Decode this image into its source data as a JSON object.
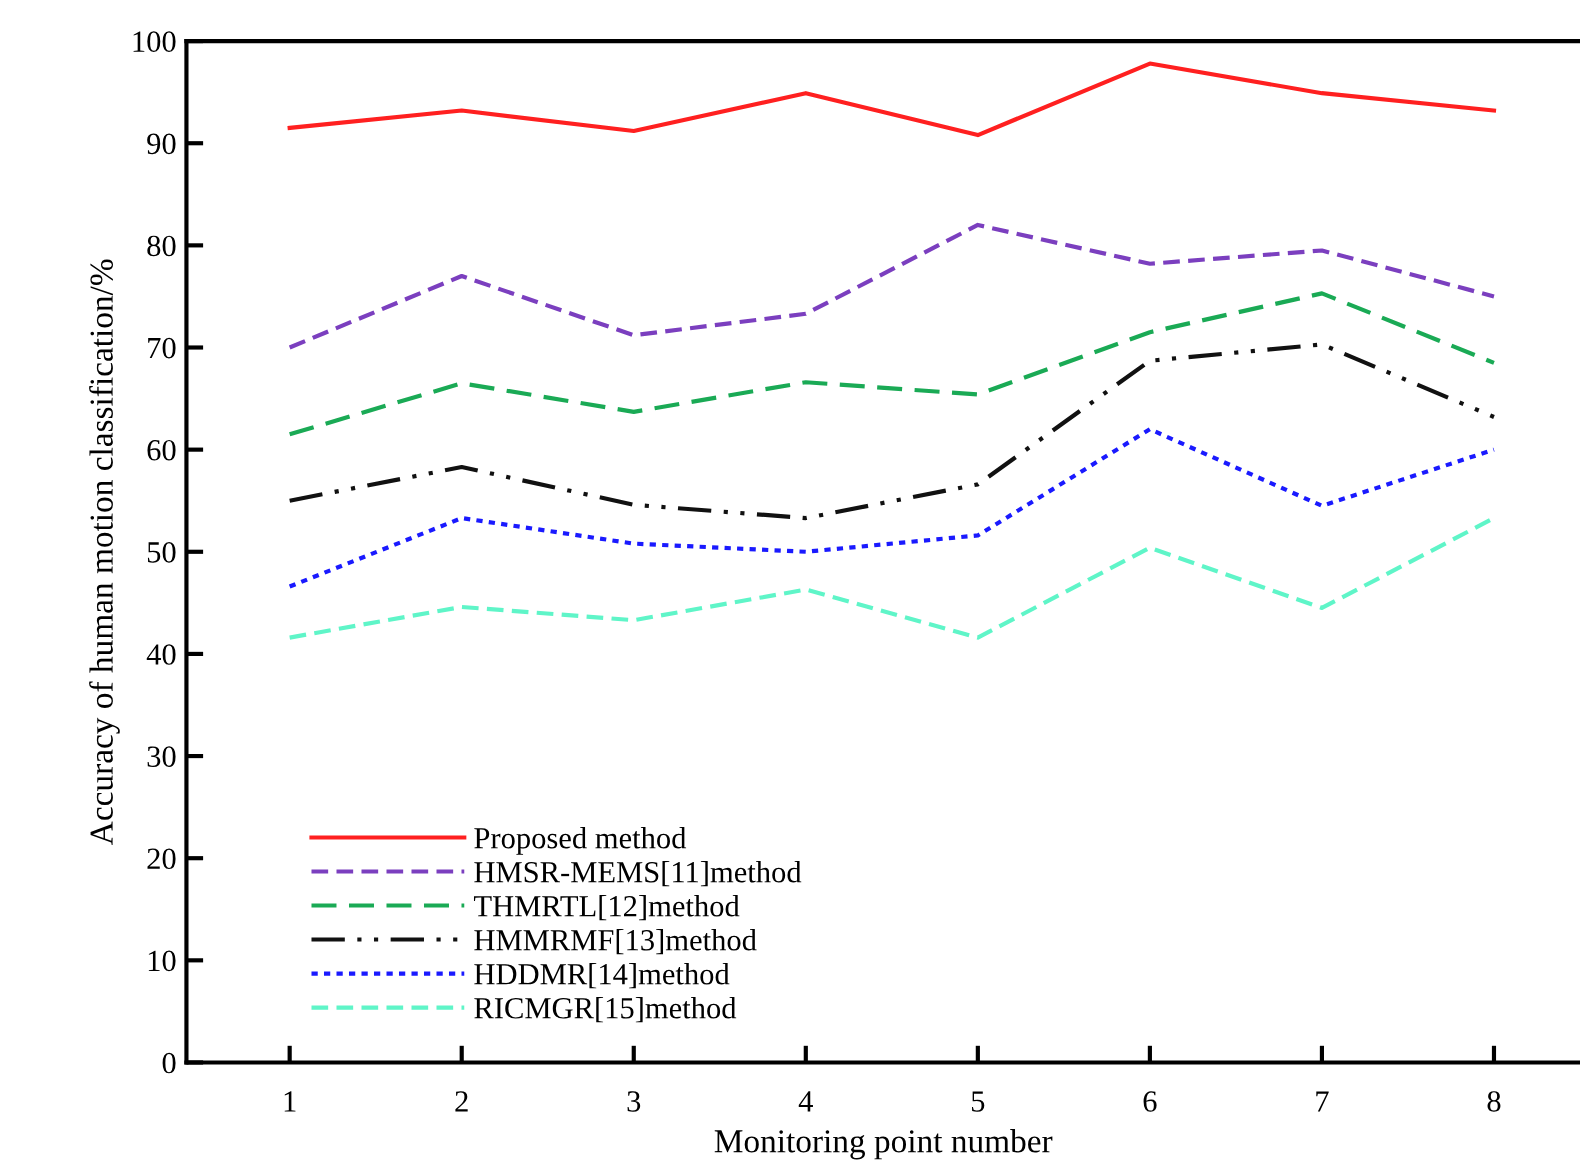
{
  "chart_data": {
    "type": "line",
    "xlabel": "Monitoring point number",
    "ylabel": "Accuracy of human motion classification/%",
    "x": [
      1,
      2,
      3,
      4,
      5,
      6,
      7,
      8
    ],
    "xlim": [
      0.4,
      8.5
    ],
    "xticks": [
      1,
      2,
      3,
      4,
      5,
      6,
      7,
      8
    ],
    "ylim": [
      0,
      100
    ],
    "yticks": [
      0,
      10,
      20,
      30,
      40,
      50,
      60,
      70,
      80,
      90,
      100
    ],
    "grid": false,
    "legend": "bottom left",
    "marker": "none",
    "series": [
      {
        "name": "Proposed method",
        "color": "#ff2020",
        "line_style": "solid",
        "values": [
          91.5,
          93.2,
          91.2,
          94.9,
          90.8,
          97.8,
          94.9,
          93.2
        ]
      },
      {
        "name": "HMSR-MEMS[11]method",
        "color": "#7b3fbf",
        "line_style": "longdash",
        "values": [
          70,
          77,
          71.2,
          73.3,
          82,
          78.2,
          79.5,
          75
        ]
      },
      {
        "name": "THMRTL[12]method",
        "color": "#1aaa55",
        "line_style": "dashed",
        "values": [
          61.5,
          66.5,
          63.7,
          66.6,
          65.4,
          71.5,
          75.3,
          68.5
        ]
      },
      {
        "name": "HMMRMF[13]method",
        "color": "#111111",
        "line_style": "dashdotdot",
        "values": [
          55,
          58.3,
          54.6,
          53.3,
          56.6,
          68.7,
          70.3,
          63.2
        ]
      },
      {
        "name": "HDDMR[14]method",
        "color": "#1a1aff",
        "line_style": "dotted",
        "values": [
          46.6,
          53.3,
          50.8,
          50,
          51.6,
          62,
          54.5,
          60
        ]
      },
      {
        "name": "RICMGR[15]method",
        "color": "#5ff5c8",
        "line_style": "longdash",
        "values": [
          41.6,
          44.6,
          43.3,
          46.3,
          41.6,
          50.4,
          44.5,
          53.3
        ]
      }
    ]
  }
}
